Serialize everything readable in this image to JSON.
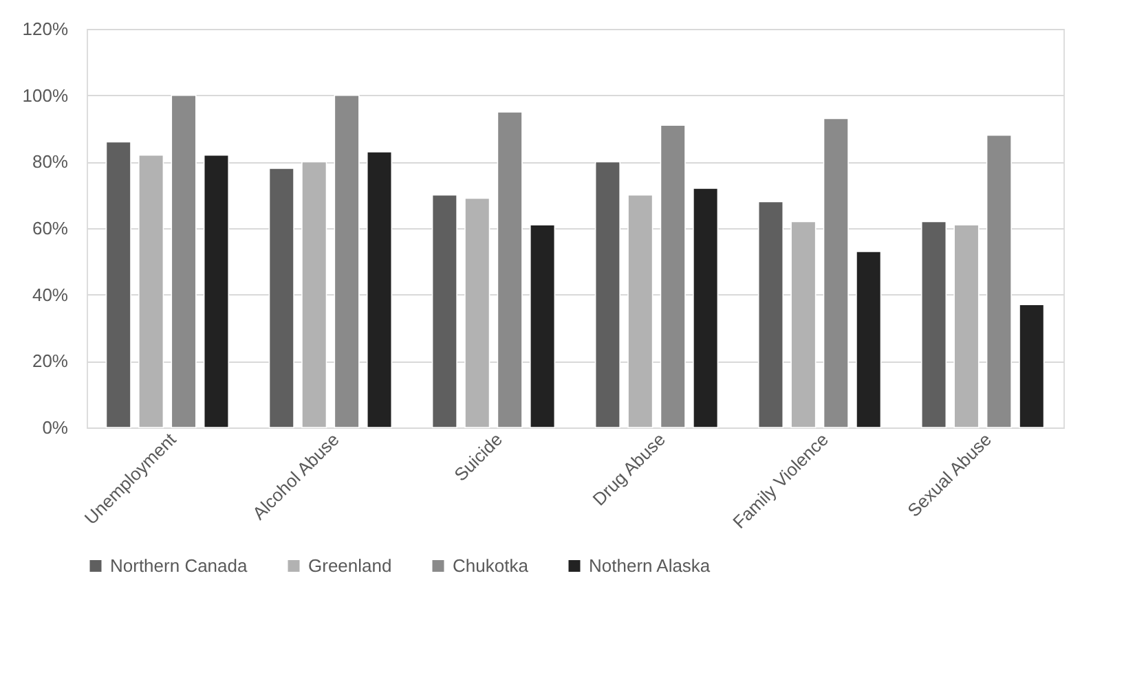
{
  "chart_data": {
    "type": "bar",
    "categories": [
      "Unemployment",
      "Alcohol Abuse",
      "Suicide",
      "Drug Abuse",
      "Family Violence",
      "Sexual Abuse"
    ],
    "series": [
      {
        "name": "Northern Canada",
        "color": "#5f5f5f",
        "values": [
          86,
          78,
          70,
          80,
          68,
          62
        ]
      },
      {
        "name": "Greenland",
        "color": "#b2b2b2",
        "values": [
          82,
          80,
          69,
          70,
          62,
          61
        ]
      },
      {
        "name": "Chukotka",
        "color": "#8a8a8a",
        "values": [
          100,
          100,
          95,
          91,
          93,
          88
        ]
      },
      {
        "name": "Nothern Alaska",
        "color": "#222222",
        "values": [
          82,
          83,
          61,
          72,
          53,
          37
        ]
      }
    ],
    "ylim": [
      0,
      120
    ],
    "yticks": [
      {
        "value": 0,
        "label": "0%"
      },
      {
        "value": 20,
        "label": "20%"
      },
      {
        "value": 40,
        "label": "40%"
      },
      {
        "value": 60,
        "label": "60%"
      },
      {
        "value": 80,
        "label": "80%"
      },
      {
        "value": 100,
        "label": "100%"
      },
      {
        "value": 120,
        "label": "120%"
      }
    ],
    "grid": "y",
    "legend": "bottom"
  }
}
